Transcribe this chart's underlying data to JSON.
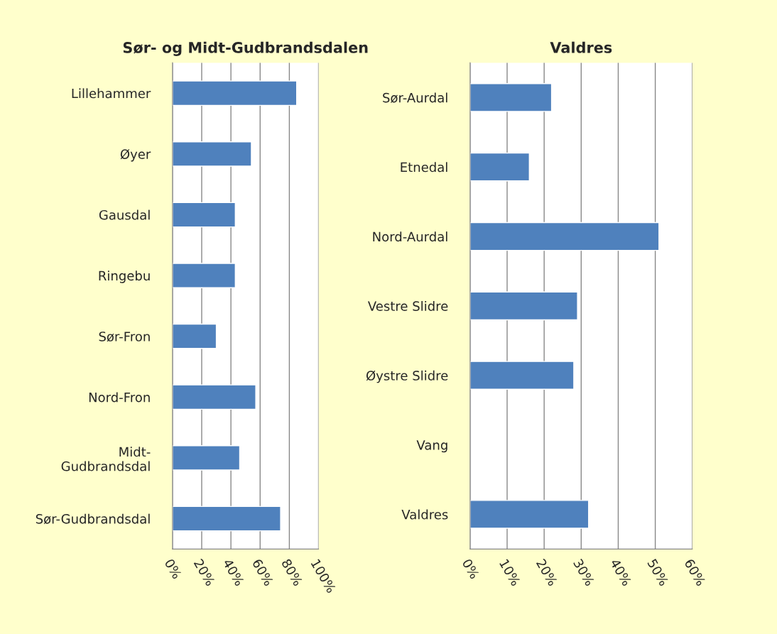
{
  "chart_data": [
    {
      "type": "bar",
      "orientation": "horizontal",
      "title": "Sør- og Midt-Gudbrandsdalen",
      "categories": [
        "Lillehammer",
        "Øyer",
        "Gausdal",
        "Ringebu",
        "Sør-Fron",
        "Nord-Fron",
        "Midt-\nGudbrandsdal",
        "Sør-Gudbrandsdal"
      ],
      "series": [
        {
          "color": "#4f81bd",
          "values": [
            85,
            54,
            43,
            43,
            30,
            57,
            46,
            74
          ]
        }
      ],
      "xlim": [
        0,
        100
      ],
      "xticks": [
        {
          "value": 0,
          "label": "0%"
        },
        {
          "value": 20,
          "label": "20%"
        },
        {
          "value": 40,
          "label": "40%"
        },
        {
          "value": 60,
          "label": "60%"
        },
        {
          "value": 80,
          "label": "80%"
        },
        {
          "value": 100,
          "label": "100%"
        }
      ],
      "grid": "x",
      "legend": false
    },
    {
      "type": "bar",
      "orientation": "horizontal",
      "title": "Valdres",
      "categories": [
        "Sør-Aurdal",
        "Etnedal",
        "Nord-Aurdal",
        "Vestre Slidre",
        "Øystre Slidre",
        "Vang",
        "Valdres"
      ],
      "series": [
        {
          "color": "#4f81bd",
          "values": [
            22,
            16,
            51,
            29,
            28,
            null,
            32
          ]
        }
      ],
      "xlim": [
        0,
        60
      ],
      "xticks": [
        {
          "value": 0,
          "label": "0%"
        },
        {
          "value": 10,
          "label": "10%"
        },
        {
          "value": 20,
          "label": "20%"
        },
        {
          "value": 30,
          "label": "30%"
        },
        {
          "value": 40,
          "label": "40%"
        },
        {
          "value": 50,
          "label": "50%"
        },
        {
          "value": 60,
          "label": "60%"
        }
      ],
      "grid": "x",
      "legend": false
    }
  ]
}
